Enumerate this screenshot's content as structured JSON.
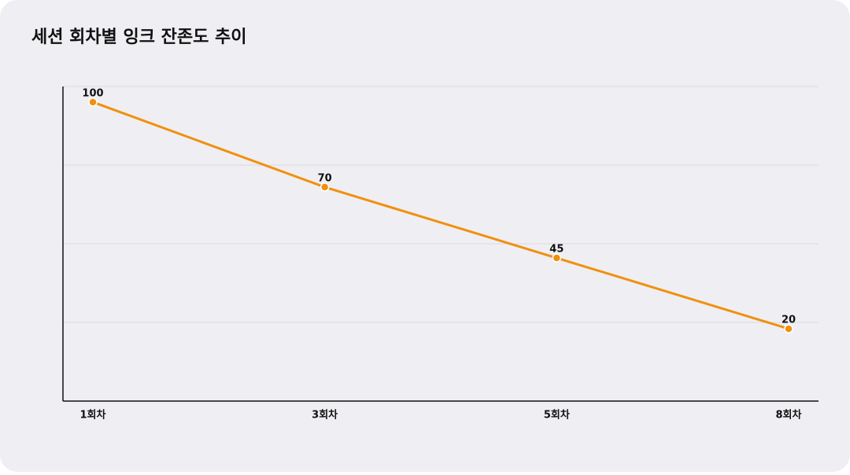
{
  "chart_data": {
    "type": "line",
    "title": "세션 회차별 잉크 잔존도 추이",
    "categories": [
      "1회차",
      "3회차",
      "5회차",
      "8회차"
    ],
    "series": [
      {
        "name": "잉크 잔존도",
        "color": "#f0900f",
        "values": [
          100,
          70,
          45,
          20
        ]
      }
    ],
    "ylim": [
      -5.5,
      105.5
    ],
    "grid": true
  }
}
